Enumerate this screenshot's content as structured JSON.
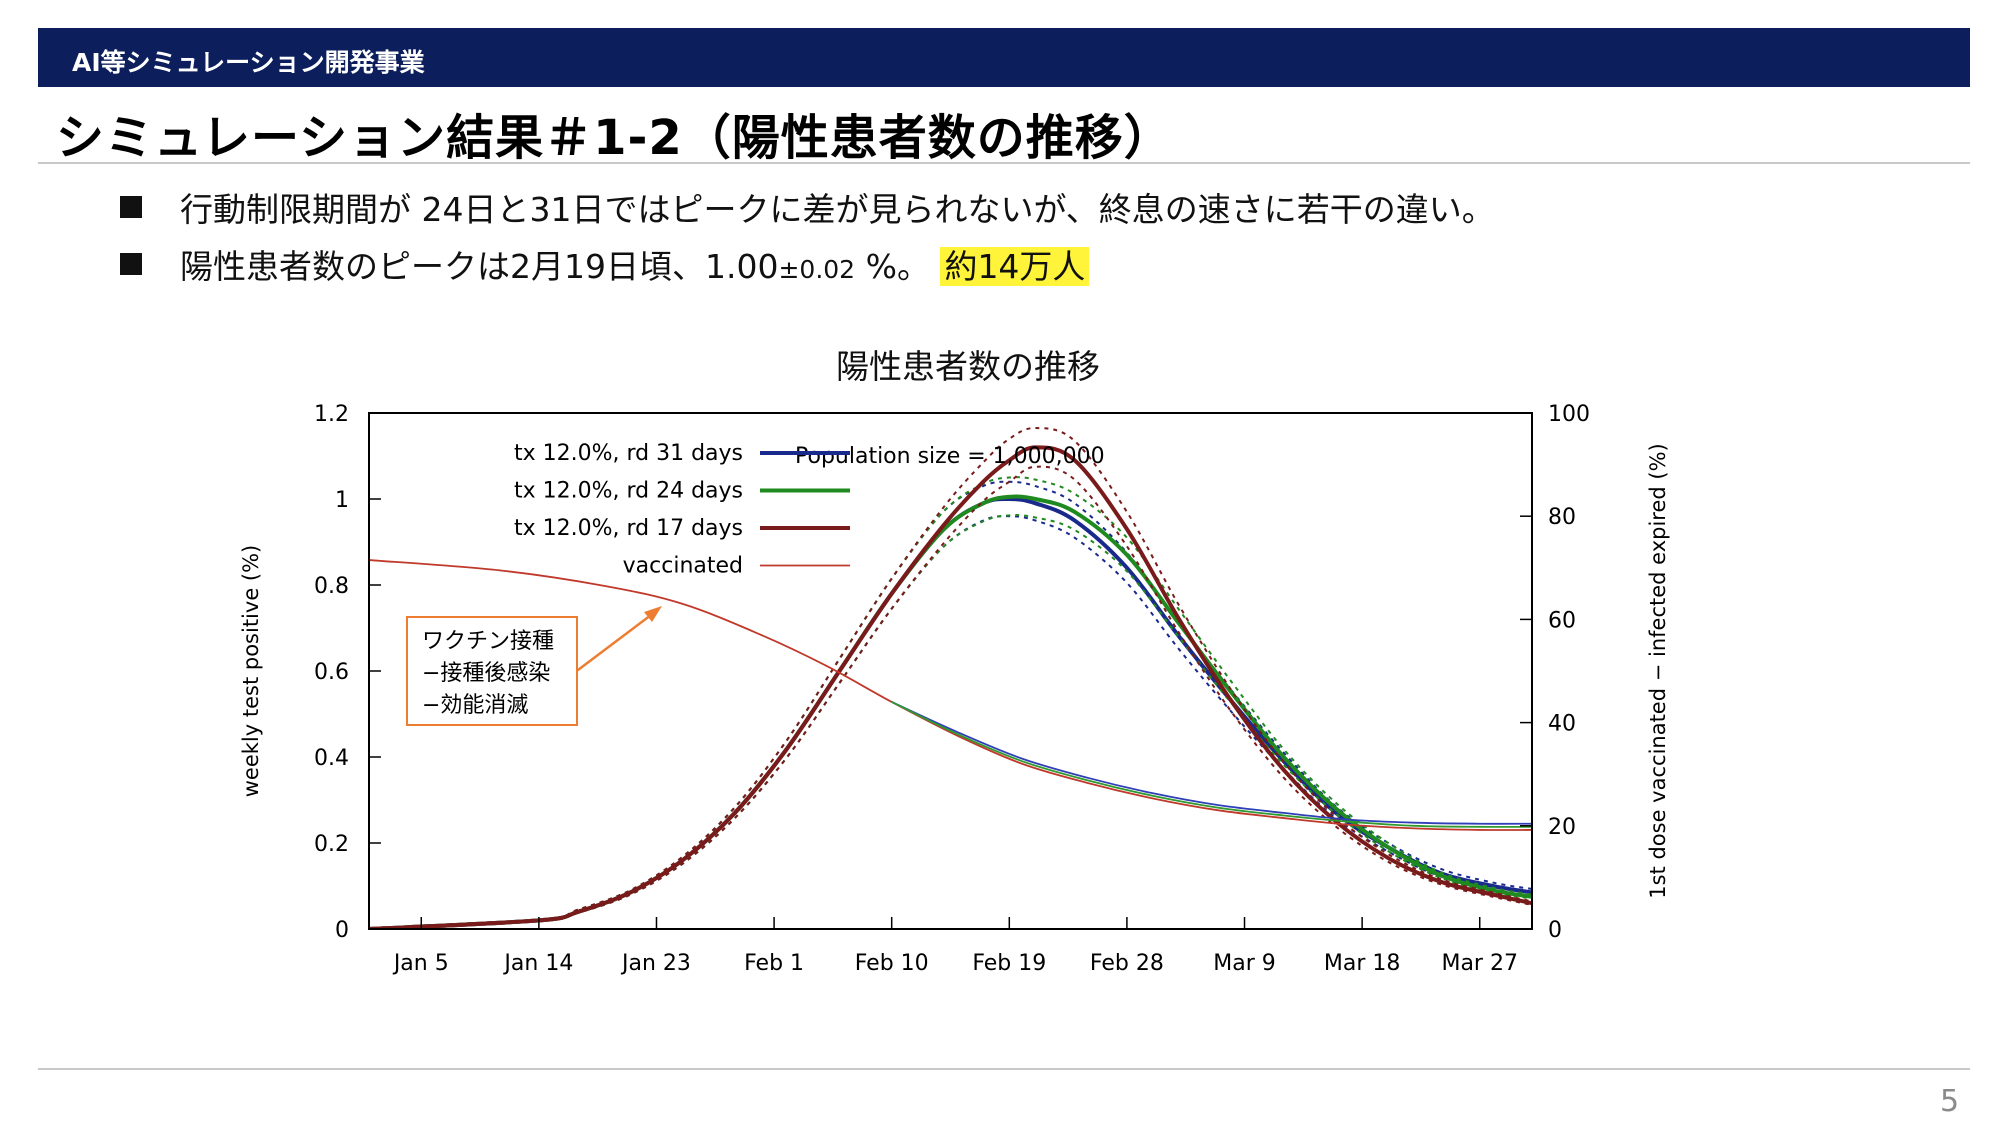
{
  "header": {
    "label": "AI等シミュレーション開発事業"
  },
  "slide": {
    "title": "シミュレーション結果＃1-2（陽性患者数の推移）",
    "page_number": "5"
  },
  "bullets": [
    {
      "text": "行動制限期間が 24日と31日ではピークに差が見られないが、終息の速さに若干の違い。"
    },
    {
      "text_before": "陽性患者数のピークは2月19日頃、1.00",
      "small": "±0.02",
      "text_after": " %。 ",
      "highlight": "約14万人"
    }
  ],
  "callout": {
    "lines": [
      "ワクチン接種",
      "−接種後感染",
      "−効能消滅"
    ],
    "border_color": "#ed7d31"
  },
  "chart_data": {
    "type": "line",
    "title": "陽性患者数の推移",
    "annotation": "Population size = 1,000,000",
    "ylabel": "weekly test positive (%)",
    "y2label": "1st dose vaccinated − infected expired (%)",
    "ylim": [
      0,
      1.2
    ],
    "y2lim": [
      0,
      100
    ],
    "yticks": [
      0,
      0.2,
      0.4,
      0.6,
      0.8,
      1,
      1.2
    ],
    "ytick_labels": [
      "0",
      "0.2",
      "0.4",
      "0.6",
      "0.8",
      "1",
      "1.2"
    ],
    "y2ticks": [
      0,
      20,
      40,
      60,
      80,
      100
    ],
    "xlim": [
      0,
      89
    ],
    "xticks": [
      {
        "label": "Jan 5",
        "day": 4
      },
      {
        "label": "Jan 14",
        "day": 13
      },
      {
        "label": "Jan 23",
        "day": 22
      },
      {
        "label": "Feb 1",
        "day": 31
      },
      {
        "label": "Feb 10",
        "day": 40
      },
      {
        "label": "Feb 19",
        "day": 49
      },
      {
        "label": "Feb 28",
        "day": 58
      },
      {
        "label": "Mar 9",
        "day": 67
      },
      {
        "label": "Mar 18",
        "day": 76
      },
      {
        "label": "Mar 27",
        "day": 85
      }
    ],
    "legend_position": "top-left",
    "series": [
      {
        "name": "tx 12.0%, rd 31 days",
        "color": "#1a2a8c",
        "axis": "y1",
        "x": [
          0,
          13,
          16,
          20,
          24,
          28,
          32,
          36,
          40,
          44,
          47,
          49,
          51,
          54,
          58,
          62,
          66,
          70,
          74,
          78,
          82,
          86,
          89
        ],
        "y": [
          0,
          0.02,
          0.04,
          0.085,
          0.16,
          0.27,
          0.42,
          0.6,
          0.78,
          0.93,
          0.99,
          1.0,
          0.99,
          0.95,
          0.84,
          0.68,
          0.53,
          0.39,
          0.27,
          0.19,
          0.13,
          0.1,
          0.085
        ],
        "band": {
          "upper": [
            0,
            0.02,
            0.045,
            0.09,
            0.168,
            0.283,
            0.44,
            0.628,
            0.815,
            0.972,
            1.03,
            1.04,
            1.03,
            0.99,
            0.875,
            0.71,
            0.555,
            0.41,
            0.285,
            0.2,
            0.14,
            0.108,
            0.093
          ],
          "lower": [
            0,
            0.02,
            0.038,
            0.08,
            0.152,
            0.258,
            0.4,
            0.572,
            0.745,
            0.89,
            0.95,
            0.96,
            0.95,
            0.91,
            0.805,
            0.65,
            0.505,
            0.372,
            0.257,
            0.18,
            0.122,
            0.093,
            0.08
          ]
        }
      },
      {
        "name": "tx 12.0%, rd 24 days",
        "color": "#1f8a1f",
        "axis": "y1",
        "x": [
          0,
          13,
          16,
          20,
          24,
          28,
          32,
          36,
          40,
          44,
          47,
          49,
          51,
          54,
          58,
          62,
          66,
          70,
          74,
          78,
          82,
          86,
          89
        ],
        "y": [
          0,
          0.02,
          0.04,
          0.085,
          0.16,
          0.27,
          0.42,
          0.6,
          0.78,
          0.93,
          0.99,
          1.005,
          1.0,
          0.97,
          0.87,
          0.71,
          0.55,
          0.4,
          0.28,
          0.19,
          0.125,
          0.09,
          0.075
        ],
        "band": {
          "upper": [
            0,
            0.02,
            0.045,
            0.09,
            0.168,
            0.283,
            0.44,
            0.628,
            0.815,
            0.972,
            1.035,
            1.05,
            1.045,
            1.012,
            0.91,
            0.742,
            0.575,
            0.418,
            0.293,
            0.2,
            0.132,
            0.096,
            0.08
          ],
          "lower": [
            0,
            0.02,
            0.038,
            0.08,
            0.152,
            0.258,
            0.4,
            0.572,
            0.745,
            0.89,
            0.948,
            0.962,
            0.957,
            0.928,
            0.832,
            0.678,
            0.525,
            0.382,
            0.268,
            0.181,
            0.119,
            0.085,
            0.071
          ]
        }
      },
      {
        "name": "tx 12.0%, rd 17 days",
        "color": "#7a1b1b",
        "axis": "y1",
        "x": [
          0,
          13,
          16,
          20,
          24,
          28,
          32,
          36,
          40,
          44,
          47,
          49,
          51,
          54,
          58,
          62,
          66,
          70,
          74,
          78,
          82,
          86,
          89
        ],
        "y": [
          0,
          0.02,
          0.04,
          0.085,
          0.16,
          0.27,
          0.42,
          0.6,
          0.78,
          0.94,
          1.04,
          1.09,
          1.12,
          1.09,
          0.93,
          0.72,
          0.53,
          0.37,
          0.25,
          0.165,
          0.11,
          0.08,
          0.06
        ],
        "band": {
          "upper": [
            0,
            0.02,
            0.045,
            0.09,
            0.168,
            0.283,
            0.44,
            0.628,
            0.815,
            0.982,
            1.085,
            1.14,
            1.165,
            1.135,
            0.97,
            0.752,
            0.555,
            0.388,
            0.262,
            0.174,
            0.116,
            0.085,
            0.064
          ],
          "lower": [
            0,
            0.02,
            0.038,
            0.08,
            0.152,
            0.258,
            0.4,
            0.572,
            0.745,
            0.898,
            0.995,
            1.04,
            1.075,
            1.045,
            0.89,
            0.688,
            0.505,
            0.352,
            0.238,
            0.156,
            0.104,
            0.075,
            0.056
          ]
        }
      },
      {
        "name": "vaccinated",
        "color": "#c0392b",
        "axis": "y2",
        "x": [
          0,
          10,
          18,
          24,
          30,
          35,
          40,
          45,
          50,
          55,
          60,
          65,
          70,
          75,
          80,
          85,
          89
        ],
        "y": [
          71.5,
          69.5,
          66.5,
          63,
          57,
          51,
          44,
          37.5,
          32,
          28.3,
          25.3,
          23,
          21.5,
          20.2,
          19.5,
          19.2,
          19.2
        ]
      },
      {
        "name": "",
        "color": "#2e3fb8",
        "axis": "y2",
        "x": [
          40,
          45,
          50,
          55,
          60,
          65,
          70,
          75,
          80,
          85,
          89
        ],
        "y": [
          44,
          38.2,
          33,
          29.3,
          26.3,
          24,
          22.5,
          21.2,
          20.6,
          20.4,
          20.4
        ]
      },
      {
        "name": "",
        "color": "#2f9a2f",
        "axis": "y2",
        "x": [
          40,
          45,
          50,
          55,
          60,
          65,
          70,
          75,
          80,
          85,
          89
        ],
        "y": [
          44,
          37.8,
          32.5,
          28.8,
          25.8,
          23.5,
          22,
          20.8,
          20,
          19.8,
          19.8
        ]
      }
    ]
  }
}
